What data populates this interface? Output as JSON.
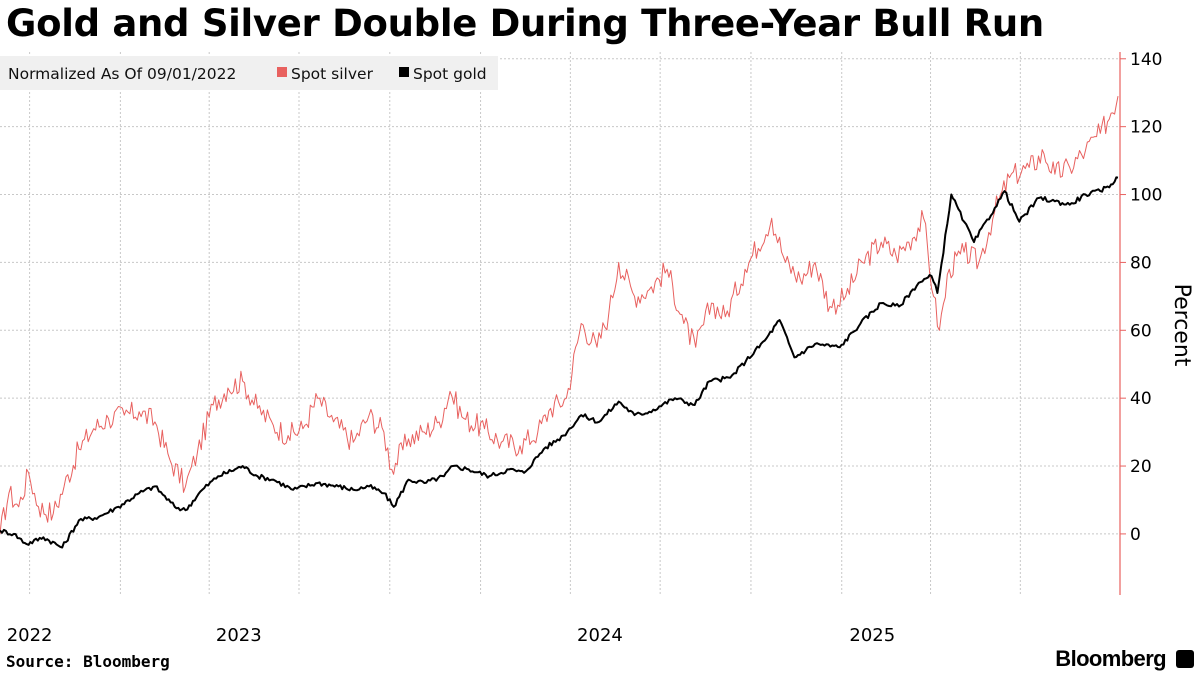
{
  "title": "Gold and Silver Double During Three-Year Bull Run",
  "source": "Source: Bloomberg",
  "brand": "Bloomberg",
  "chart_data": {
    "type": "line",
    "title": "Gold and Silver Double During Three-Year Bull Run",
    "legend_title": "Normalized As Of 09/01/2022",
    "legend_position": "top-left",
    "ylabel": "Percent",
    "xlabel": "",
    "ylim": [
      -18,
      142
    ],
    "yticks": [
      0,
      20,
      40,
      60,
      80,
      100,
      120,
      140
    ],
    "xlim": [
      "2022-09-01",
      "2025-10-10"
    ],
    "xticks": [
      {
        "label": "2022",
        "date": "2022-10-01"
      },
      {
        "label": "2023",
        "date": "2023-05-01"
      },
      {
        "label": "2024",
        "date": "2024-05-01"
      },
      {
        "label": "2025",
        "date": "2025-02-01"
      }
    ],
    "vertical_gridlines": [
      "2022-10-01",
      "2023-01-01",
      "2023-04-01",
      "2023-07-01",
      "2023-10-01",
      "2024-01-01",
      "2024-04-01",
      "2024-07-01",
      "2024-10-01",
      "2025-01-01",
      "2025-04-01",
      "2025-07-01"
    ],
    "grid": true,
    "colors": {
      "silver": "#e8615f",
      "gold": "#000000",
      "axis": "#e8615f",
      "grid": "#c8c8c8"
    },
    "series": [
      {
        "name": "Spot silver",
        "color": "#e8615f",
        "points": [
          [
            "2022-09-01",
            0
          ],
          [
            "2022-09-10",
            12
          ],
          [
            "2022-09-20",
            8
          ],
          [
            "2022-09-30",
            18
          ],
          [
            "2022-10-10",
            8
          ],
          [
            "2022-10-25",
            6
          ],
          [
            "2022-11-05",
            14
          ],
          [
            "2022-11-20",
            25
          ],
          [
            "2022-12-05",
            31
          ],
          [
            "2022-12-20",
            34
          ],
          [
            "2023-01-05",
            35
          ],
          [
            "2023-01-20",
            36
          ],
          [
            "2023-02-05",
            33
          ],
          [
            "2023-02-20",
            22
          ],
          [
            "2023-03-08",
            14
          ],
          [
            "2023-03-20",
            24
          ],
          [
            "2023-04-05",
            38
          ],
          [
            "2023-04-20",
            43
          ],
          [
            "2023-05-05",
            45
          ],
          [
            "2023-05-20",
            37
          ],
          [
            "2023-06-05",
            32
          ],
          [
            "2023-06-20",
            29
          ],
          [
            "2023-07-05",
            31
          ],
          [
            "2023-07-20",
            40
          ],
          [
            "2023-08-05",
            33
          ],
          [
            "2023-08-25",
            27
          ],
          [
            "2023-09-10",
            35
          ],
          [
            "2023-09-25",
            30
          ],
          [
            "2023-10-03",
            19
          ],
          [
            "2023-10-20",
            28
          ],
          [
            "2023-11-05",
            30
          ],
          [
            "2023-11-20",
            33
          ],
          [
            "2023-12-01",
            42
          ],
          [
            "2023-12-15",
            34
          ],
          [
            "2024-01-05",
            31
          ],
          [
            "2024-01-22",
            27
          ],
          [
            "2024-02-10",
            26
          ],
          [
            "2024-02-28",
            30
          ],
          [
            "2024-03-12",
            37
          ],
          [
            "2024-03-28",
            40
          ],
          [
            "2024-04-12",
            62
          ],
          [
            "2024-04-28",
            55
          ],
          [
            "2024-05-10",
            65
          ],
          [
            "2024-05-20",
            80
          ],
          [
            "2024-06-05",
            70
          ],
          [
            "2024-06-20",
            72
          ],
          [
            "2024-07-08",
            78
          ],
          [
            "2024-07-25",
            62
          ],
          [
            "2024-08-06",
            55
          ],
          [
            "2024-08-22",
            68
          ],
          [
            "2024-09-05",
            64
          ],
          [
            "2024-09-25",
            78
          ],
          [
            "2024-10-22",
            93
          ],
          [
            "2024-11-05",
            80
          ],
          [
            "2024-11-20",
            75
          ],
          [
            "2024-12-05",
            80
          ],
          [
            "2024-12-20",
            67
          ],
          [
            "2025-01-05",
            70
          ],
          [
            "2025-01-22",
            80
          ],
          [
            "2025-02-10",
            86
          ],
          [
            "2025-02-25",
            82
          ],
          [
            "2025-03-10",
            86
          ],
          [
            "2025-03-25",
            93
          ],
          [
            "2025-04-04",
            70
          ],
          [
            "2025-04-10",
            60
          ],
          [
            "2025-04-20",
            78
          ],
          [
            "2025-05-05",
            83
          ],
          [
            "2025-05-20",
            80
          ],
          [
            "2025-06-05",
            95
          ],
          [
            "2025-06-20",
            105
          ],
          [
            "2025-07-10",
            108
          ],
          [
            "2025-07-25",
            112
          ],
          [
            "2025-08-05",
            106
          ],
          [
            "2025-08-20",
            108
          ],
          [
            "2025-09-05",
            113
          ],
          [
            "2025-09-20",
            118
          ],
          [
            "2025-10-01",
            124
          ],
          [
            "2025-10-08",
            129
          ]
        ]
      },
      {
        "name": "Spot gold",
        "color": "#000000",
        "points": [
          [
            "2022-09-01",
            1
          ],
          [
            "2022-09-15",
            0
          ],
          [
            "2022-09-28",
            -3
          ],
          [
            "2022-10-15",
            -1
          ],
          [
            "2022-11-03",
            -4
          ],
          [
            "2022-11-20",
            4
          ],
          [
            "2022-12-10",
            5
          ],
          [
            "2022-12-30",
            8
          ],
          [
            "2023-01-20",
            12
          ],
          [
            "2023-02-05",
            14
          ],
          [
            "2023-02-25",
            8
          ],
          [
            "2023-03-08",
            7
          ],
          [
            "2023-03-25",
            13
          ],
          [
            "2023-04-10",
            17
          ],
          [
            "2023-05-05",
            20
          ],
          [
            "2023-05-20",
            17
          ],
          [
            "2023-06-05",
            16
          ],
          [
            "2023-06-25",
            13
          ],
          [
            "2023-07-20",
            15
          ],
          [
            "2023-08-10",
            14
          ],
          [
            "2023-08-25",
            13
          ],
          [
            "2023-09-10",
            14
          ],
          [
            "2023-09-25",
            12
          ],
          [
            "2023-10-05",
            8
          ],
          [
            "2023-10-20",
            16
          ],
          [
            "2023-11-05",
            15
          ],
          [
            "2023-11-25",
            17
          ],
          [
            "2023-12-04",
            20
          ],
          [
            "2023-12-20",
            19
          ],
          [
            "2024-01-10",
            17
          ],
          [
            "2024-01-30",
            19
          ],
          [
            "2024-02-14",
            18
          ],
          [
            "2024-03-05",
            25
          ],
          [
            "2024-03-25",
            29
          ],
          [
            "2024-04-12",
            35
          ],
          [
            "2024-04-30",
            33
          ],
          [
            "2024-05-20",
            39
          ],
          [
            "2024-06-05",
            35
          ],
          [
            "2024-06-20",
            36
          ],
          [
            "2024-07-16",
            40
          ],
          [
            "2024-08-05",
            38
          ],
          [
            "2024-08-20",
            45
          ],
          [
            "2024-09-10",
            46
          ],
          [
            "2024-09-26",
            51
          ],
          [
            "2024-10-15",
            57
          ],
          [
            "2024-10-30",
            63
          ],
          [
            "2024-11-14",
            52
          ],
          [
            "2024-12-05",
            56
          ],
          [
            "2024-12-30",
            55
          ],
          [
            "2025-01-20",
            62
          ],
          [
            "2025-02-10",
            68
          ],
          [
            "2025-02-28",
            67
          ],
          [
            "2025-03-20",
            74
          ],
          [
            "2025-04-02",
            76
          ],
          [
            "2025-04-08",
            71
          ],
          [
            "2025-04-22",
            100
          ],
          [
            "2025-05-05",
            92
          ],
          [
            "2025-05-15",
            86
          ],
          [
            "2025-06-05",
            96
          ],
          [
            "2025-06-15",
            101
          ],
          [
            "2025-06-30",
            92
          ],
          [
            "2025-07-20",
            99
          ],
          [
            "2025-08-05",
            98
          ],
          [
            "2025-08-20",
            97
          ],
          [
            "2025-09-05",
            100
          ],
          [
            "2025-09-20",
            101
          ],
          [
            "2025-10-01",
            103
          ],
          [
            "2025-10-08",
            105
          ]
        ]
      }
    ]
  }
}
